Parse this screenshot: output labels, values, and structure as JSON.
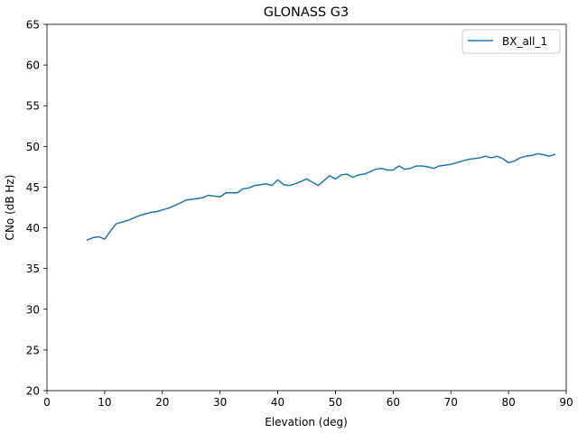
{
  "chart_data": {
    "type": "line",
    "title": "GLONASS G3",
    "xlabel": "Elevation (deg)",
    "ylabel": "CNo (dB Hz)",
    "xlim": [
      0,
      90
    ],
    "ylim": [
      20,
      65
    ],
    "xticks": [
      0,
      10,
      20,
      30,
      40,
      50,
      60,
      70,
      80,
      90
    ],
    "yticks": [
      20,
      25,
      30,
      35,
      40,
      45,
      50,
      55,
      60,
      65
    ],
    "grid": false,
    "legend_position": "top-right",
    "series": [
      {
        "name": "BX_all_1",
        "color": "#1f77b4",
        "x": [
          7,
          8,
          9,
          10,
          11,
          12,
          13,
          14,
          15,
          16,
          17,
          18,
          19,
          20,
          21,
          22,
          23,
          24,
          25,
          26,
          27,
          28,
          29,
          30,
          31,
          32,
          33,
          34,
          35,
          36,
          37,
          38,
          39,
          40,
          41,
          42,
          43,
          44,
          45,
          46,
          47,
          48,
          49,
          50,
          51,
          52,
          53,
          54,
          55,
          56,
          57,
          58,
          59,
          60,
          61,
          62,
          63,
          64,
          65,
          66,
          67,
          68,
          69,
          70,
          71,
          72,
          73,
          74,
          75,
          76,
          77,
          78,
          79,
          80,
          81,
          82,
          83,
          84,
          85,
          86,
          87,
          88
        ],
        "y": [
          38.5,
          38.8,
          38.9,
          38.6,
          39.6,
          40.5,
          40.7,
          40.9,
          41.2,
          41.5,
          41.7,
          41.9,
          42.0,
          42.2,
          42.4,
          42.7,
          43.0,
          43.4,
          43.5,
          43.6,
          43.7,
          44.0,
          43.9,
          43.8,
          44.3,
          44.3,
          44.3,
          44.8,
          44.9,
          45.2,
          45.3,
          45.4,
          45.2,
          45.9,
          45.3,
          45.2,
          45.4,
          45.7,
          46.0,
          45.6,
          45.2,
          45.8,
          46.4,
          46.0,
          46.5,
          46.6,
          46.2,
          46.5,
          46.6,
          46.9,
          47.2,
          47.3,
          47.1,
          47.1,
          47.6,
          47.2,
          47.3,
          47.6,
          47.6,
          47.5,
          47.3,
          47.6,
          47.7,
          47.8,
          48.0,
          48.2,
          48.4,
          48.5,
          48.6,
          48.8,
          48.6,
          48.8,
          48.5,
          48.0,
          48.2,
          48.6,
          48.8,
          48.9,
          49.1,
          49.0,
          48.8,
          49.0
        ]
      }
    ]
  }
}
